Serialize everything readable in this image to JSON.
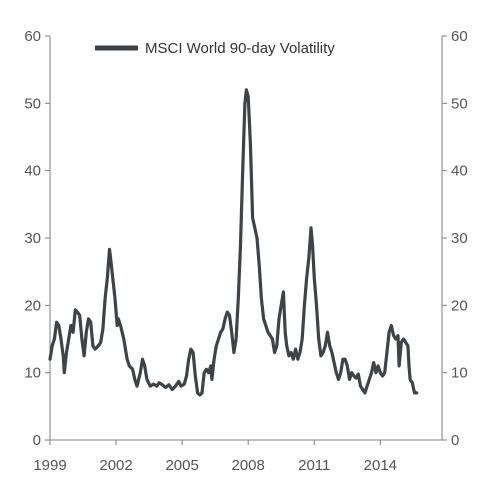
{
  "chart_data": {
    "type": "line",
    "title": "",
    "xlabel": "",
    "ylabel": "",
    "ylim": [
      0,
      60
    ],
    "xlim": [
      1999,
      2016.8
    ],
    "y_ticks": [
      "0",
      "10",
      "20",
      "30",
      "40",
      "50",
      "60"
    ],
    "x_ticks": [
      {
        "value": 1999,
        "label": "1999"
      },
      {
        "value": 2002,
        "label": "2002"
      },
      {
        "value": 2005,
        "label": "2005"
      },
      {
        "value": 2008,
        "label": "2008"
      },
      {
        "value": 2011,
        "label": "2011"
      },
      {
        "value": 2014,
        "label": "2014"
      }
    ],
    "dual_y_axis": true,
    "grid": false,
    "legend_position": "top-center",
    "series": [
      {
        "name": "MSCI World 90-day Volatility",
        "color": "#3d4347",
        "points": [
          [
            1999.0,
            12
          ],
          [
            1999.1,
            14
          ],
          [
            1999.2,
            15
          ],
          [
            1999.3,
            17.5
          ],
          [
            1999.4,
            17
          ],
          [
            1999.5,
            15
          ],
          [
            1999.6,
            12.5
          ],
          [
            1999.65,
            10
          ],
          [
            1999.75,
            13
          ],
          [
            1999.85,
            15
          ],
          [
            1999.95,
            17
          ],
          [
            2000.05,
            16
          ],
          [
            2000.15,
            19.3
          ],
          [
            2000.25,
            19
          ],
          [
            2000.35,
            18.5
          ],
          [
            2000.45,
            15
          ],
          [
            2000.55,
            12.5
          ],
          [
            2000.65,
            16
          ],
          [
            2000.75,
            18
          ],
          [
            2000.85,
            17.5
          ],
          [
            2000.95,
            14
          ],
          [
            2001.05,
            13.5
          ],
          [
            2001.2,
            14
          ],
          [
            2001.3,
            14.5
          ],
          [
            2001.4,
            16.5
          ],
          [
            2001.5,
            21
          ],
          [
            2001.6,
            24
          ],
          [
            2001.7,
            28.3
          ],
          [
            2001.75,
            27
          ],
          [
            2001.85,
            24
          ],
          [
            2001.95,
            21
          ],
          [
            2002.05,
            17
          ],
          [
            2002.1,
            18
          ],
          [
            2002.2,
            17
          ],
          [
            2002.35,
            15
          ],
          [
            2002.5,
            12
          ],
          [
            2002.6,
            11
          ],
          [
            2002.75,
            10.5
          ],
          [
            2002.85,
            9
          ],
          [
            2002.95,
            8
          ],
          [
            2003.1,
            10
          ],
          [
            2003.2,
            12
          ],
          [
            2003.3,
            11
          ],
          [
            2003.4,
            9
          ],
          [
            2003.55,
            8
          ],
          [
            2003.7,
            8.3
          ],
          [
            2003.85,
            8
          ],
          [
            2003.95,
            8.5
          ],
          [
            2004.1,
            8.2
          ],
          [
            2004.25,
            7.8
          ],
          [
            2004.4,
            8.2
          ],
          [
            2004.55,
            7.5
          ],
          [
            2004.7,
            8
          ],
          [
            2004.85,
            8.7
          ],
          [
            2004.95,
            8
          ],
          [
            2005.1,
            8.3
          ],
          [
            2005.2,
            9.5
          ],
          [
            2005.3,
            12
          ],
          [
            2005.4,
            13.5
          ],
          [
            2005.5,
            13
          ],
          [
            2005.6,
            9.5
          ],
          [
            2005.7,
            7
          ],
          [
            2005.8,
            6.7
          ],
          [
            2005.9,
            7
          ],
          [
            2006.0,
            10
          ],
          [
            2006.1,
            10.5
          ],
          [
            2006.2,
            10
          ],
          [
            2006.3,
            11
          ],
          [
            2006.35,
            9
          ],
          [
            2006.45,
            12
          ],
          [
            2006.55,
            14
          ],
          [
            2006.65,
            15
          ],
          [
            2006.75,
            16
          ],
          [
            2006.85,
            16.5
          ],
          [
            2006.95,
            18
          ],
          [
            2007.05,
            19
          ],
          [
            2007.15,
            18.5
          ],
          [
            2007.25,
            16
          ],
          [
            2007.35,
            13
          ],
          [
            2007.45,
            15
          ],
          [
            2007.55,
            21
          ],
          [
            2007.65,
            29
          ],
          [
            2007.75,
            40
          ],
          [
            2007.85,
            50
          ],
          [
            2007.92,
            52
          ],
          [
            2008.0,
            51
          ],
          [
            2008.1,
            44
          ],
          [
            2008.2,
            33
          ],
          [
            2008.3,
            31.5
          ],
          [
            2008.4,
            30
          ],
          [
            2008.5,
            26
          ],
          [
            2008.6,
            21
          ],
          [
            2008.7,
            18
          ],
          [
            2008.8,
            17
          ],
          [
            2008.9,
            16
          ],
          [
            2009.0,
            15.5
          ],
          [
            2009.1,
            15
          ],
          [
            2009.2,
            13
          ],
          [
            2009.3,
            14
          ],
          [
            2009.4,
            18
          ],
          [
            2009.5,
            20
          ],
          [
            2009.6,
            22
          ],
          [
            2009.68,
            16
          ],
          [
            2009.75,
            14
          ],
          [
            2009.85,
            12.5
          ],
          [
            2009.95,
            13
          ],
          [
            2010.05,
            12
          ],
          [
            2010.15,
            13.5
          ],
          [
            2010.25,
            12
          ],
          [
            2010.35,
            13
          ],
          [
            2010.45,
            15
          ],
          [
            2010.55,
            20
          ],
          [
            2010.65,
            24
          ],
          [
            2010.75,
            27
          ],
          [
            2010.85,
            31.5
          ],
          [
            2010.92,
            29
          ],
          [
            2011.0,
            24
          ],
          [
            2011.1,
            20
          ],
          [
            2011.2,
            15
          ],
          [
            2011.3,
            12.5
          ],
          [
            2011.4,
            13
          ],
          [
            2011.5,
            14
          ],
          [
            2011.6,
            16
          ],
          [
            2011.7,
            14
          ],
          [
            2011.8,
            13
          ],
          [
            2011.9,
            11.5
          ],
          [
            2012.0,
            10
          ],
          [
            2012.1,
            9
          ],
          [
            2012.2,
            10
          ],
          [
            2012.3,
            12
          ],
          [
            2012.4,
            12
          ],
          [
            2012.5,
            11
          ],
          [
            2012.6,
            9
          ],
          [
            2012.7,
            10
          ],
          [
            2012.8,
            9.5
          ],
          [
            2012.9,
            9.2
          ],
          [
            2013.0,
            9.8
          ],
          [
            2013.1,
            8
          ],
          [
            2013.2,
            7.5
          ],
          [
            2013.3,
            7
          ],
          [
            2013.4,
            8
          ],
          [
            2013.5,
            9
          ],
          [
            2013.6,
            10
          ],
          [
            2013.7,
            11.5
          ],
          [
            2013.8,
            10
          ],
          [
            2013.9,
            11
          ],
          [
            2014.0,
            10
          ],
          [
            2014.1,
            9.5
          ],
          [
            2014.2,
            10
          ],
          [
            2014.3,
            13
          ],
          [
            2014.4,
            16
          ],
          [
            2014.5,
            17
          ],
          [
            2014.6,
            15.5
          ],
          [
            2014.7,
            15
          ],
          [
            2014.8,
            15.5
          ],
          [
            2014.85,
            11
          ],
          [
            2014.95,
            14.5
          ],
          [
            2015.05,
            15
          ],
          [
            2015.15,
            14.5
          ],
          [
            2015.25,
            14
          ],
          [
            2015.3,
            11
          ],
          [
            2015.35,
            9
          ],
          [
            2015.45,
            8.5
          ],
          [
            2015.55,
            7
          ],
          [
            2015.65,
            7
          ]
        ]
      }
    ]
  }
}
